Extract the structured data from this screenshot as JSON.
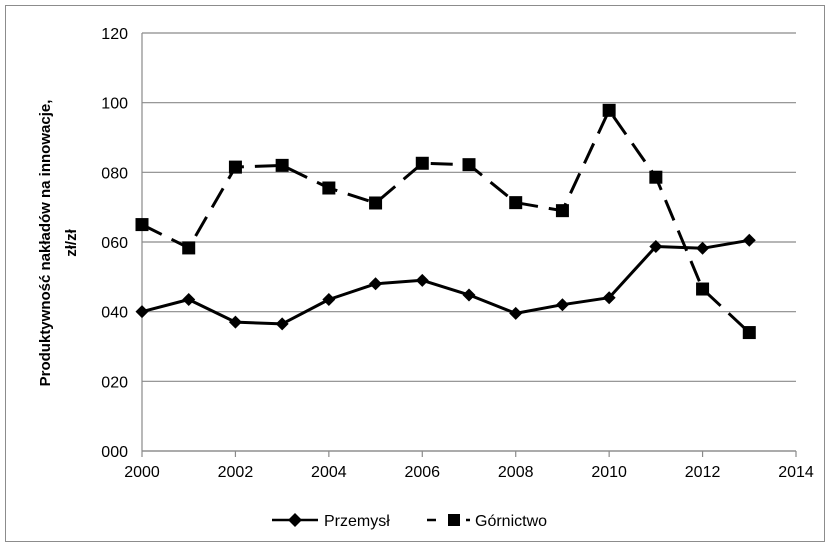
{
  "chart_data": {
    "type": "line",
    "title": "",
    "xlabel": "",
    "ylabel_line1": "Produktywność nakładów na innowacje,",
    "ylabel_line2": "zł/zł",
    "x_ticks": [
      "2000",
      "2002",
      "2004",
      "2006",
      "2008",
      "2010",
      "2012",
      "2014"
    ],
    "y_ticks": [
      "000",
      "020",
      "040",
      "060",
      "080",
      "100",
      "120"
    ],
    "xlim": [
      2000,
      2014
    ],
    "ylim": [
      0,
      120
    ],
    "grid": "horizontal",
    "legend_position": "bottom",
    "series": [
      {
        "name": "Przemysł",
        "marker": "diamond",
        "line": "solid",
        "color": "#000000",
        "x": [
          2000,
          2001,
          2002,
          2003,
          2004,
          2005,
          2006,
          2007,
          2008,
          2009,
          2010,
          2011,
          2012,
          2013
        ],
        "values": [
          40,
          43.5,
          37,
          36.5,
          43.5,
          48,
          49,
          44.8,
          39.5,
          42,
          44,
          58.7,
          58.2,
          60.5
        ]
      },
      {
        "name": "Górnictwo",
        "legend_label": "Górnictwo",
        "marker": "square",
        "line": "dashed",
        "color": "#000000",
        "x": [
          2000,
          2001,
          2002,
          2003,
          2004,
          2005,
          2006,
          2007,
          2008,
          2009,
          2010,
          2011,
          2012,
          2013
        ],
        "values": [
          65,
          58.3,
          81.5,
          82,
          75.5,
          71.2,
          82.6,
          82.2,
          71.3,
          69,
          97.8,
          78.6,
          46.5,
          34
        ]
      }
    ]
  }
}
